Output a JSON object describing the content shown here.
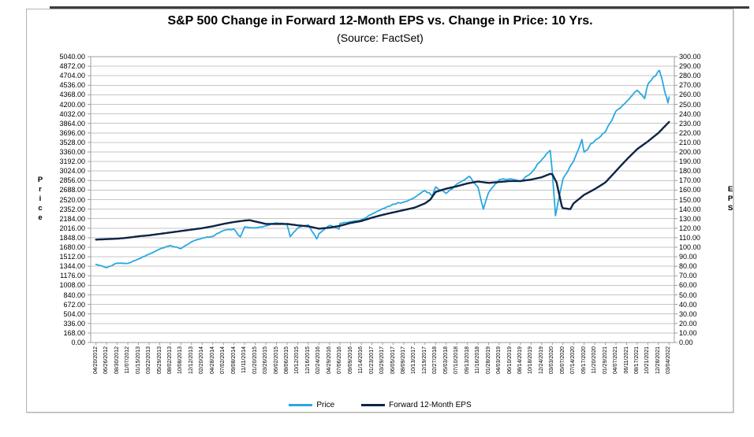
{
  "chart_data": {
    "type": "line",
    "title": "S&P 500 Change in Forward 12-Month EPS vs. Change in Price: 10 Yrs.",
    "subtitle": "(Source: FactSet)",
    "grid": true,
    "legend_position": "bottom",
    "x": [
      "04/20/2012",
      "06/26/2012",
      "08/30/2012",
      "11/07/2012",
      "01/15/2013",
      "03/22/2013",
      "05/29/2013",
      "08/02/2013",
      "10/08/2013",
      "12/12/2013",
      "02/20/2014",
      "04/28/2014",
      "07/02/2014",
      "09/08/2014",
      "11/11/2014",
      "01/20/2015",
      "03/26/2015",
      "06/02/2015",
      "08/06/2015",
      "10/12/2015",
      "12/16/2015",
      "02/24/2016",
      "04/29/2016",
      "07/06/2016",
      "09/09/2016",
      "11/14/2016",
      "01/23/2017",
      "03/29/2017",
      "06/05/2017",
      "08/09/2017",
      "10/13/2017",
      "12/19/2017",
      "02/27/2018",
      "05/03/2018",
      "07/10/2018",
      "09/13/2018",
      "11/16/2018",
      "01/28/2019",
      "04/03/2019",
      "06/10/2019",
      "08/14/2019",
      "10/18/2019",
      "12/24/2019",
      "03/03/2020",
      "05/07/2020",
      "07/14/2020",
      "09/17/2020",
      "11/20/2020",
      "01/29/2021",
      "04/07/2021",
      "06/11/2021",
      "08/17/2021",
      "10/21/2021",
      "12/28/2021",
      "03/04/2022"
    ],
    "left_axis": {
      "label": "Price",
      "lim": [
        0,
        5040
      ],
      "ticks": [
        "5040.00",
        "4872.00",
        "4704.00",
        "4536.00",
        "4368.00",
        "4200.00",
        "4032.00",
        "3864.00",
        "3696.00",
        "3528.00",
        "3360.00",
        "3192.00",
        "3024.00",
        "2856.00",
        "2688.00",
        "2520.00",
        "2352.00",
        "2184.00",
        "2016.00",
        "1848.00",
        "1680.00",
        "1512.00",
        "1344.00",
        "1176.00",
        "1008.00",
        "840.00",
        "672.00",
        "504.00",
        "336.00",
        "168.00",
        "0.00"
      ]
    },
    "right_axis": {
      "label": "EPS",
      "lim": [
        0,
        300
      ],
      "ticks": [
        "300.00",
        "290.00",
        "280.00",
        "270.00",
        "260.00",
        "250.00",
        "240.00",
        "230.00",
        "220.00",
        "210.00",
        "200.00",
        "190.00",
        "180.00",
        "170.00",
        "160.00",
        "150.00",
        "140.00",
        "130.00",
        "120.00",
        "110.00",
        "100.00",
        "90.00",
        "80.00",
        "70.00",
        "60.00",
        "50.00",
        "40.00",
        "30.00",
        "20.00",
        "10.00",
        "0.00"
      ]
    },
    "series": [
      {
        "name": "Price",
        "axis": "left",
        "color": "#29A8E0",
        "style": "noisy",
        "points": [
          [
            0,
            1378
          ],
          [
            1,
            1320
          ],
          [
            2,
            1399
          ],
          [
            3,
            1395
          ],
          [
            4,
            1472
          ],
          [
            5,
            1557
          ],
          [
            6,
            1648
          ],
          [
            7,
            1710
          ],
          [
            8,
            1655
          ],
          [
            9,
            1776
          ],
          [
            10,
            1840
          ],
          [
            11,
            1869
          ],
          [
            12,
            1975
          ],
          [
            13,
            2001
          ],
          [
            13.6,
            1862
          ],
          [
            14,
            2040
          ],
          [
            15,
            2022
          ],
          [
            16,
            2056
          ],
          [
            17,
            2109
          ],
          [
            18,
            2083
          ],
          [
            18.3,
            1868
          ],
          [
            19,
            2017
          ],
          [
            20,
            2073
          ],
          [
            20.8,
            1829
          ],
          [
            21,
            1921
          ],
          [
            22,
            2065
          ],
          [
            22.9,
            2001
          ],
          [
            23,
            2100
          ],
          [
            24,
            2128
          ],
          [
            25,
            2164
          ],
          [
            26,
            2265
          ],
          [
            27,
            2361
          ],
          [
            28,
            2436
          ],
          [
            29,
            2474
          ],
          [
            30,
            2553
          ],
          [
            31,
            2681
          ],
          [
            31.7,
            2581
          ],
          [
            32,
            2744
          ],
          [
            33,
            2630
          ],
          [
            34,
            2794
          ],
          [
            35,
            2904
          ],
          [
            35.2,
            2930
          ],
          [
            36,
            2736
          ],
          [
            36.5,
            2351
          ],
          [
            37,
            2644
          ],
          [
            38,
            2873
          ],
          [
            39,
            2886
          ],
          [
            40,
            2840
          ],
          [
            41,
            2986
          ],
          [
            42,
            3223
          ],
          [
            42.8,
            3386
          ],
          [
            43,
            3003
          ],
          [
            43.3,
            2237
          ],
          [
            44,
            2881
          ],
          [
            45,
            3198
          ],
          [
            45.8,
            3580
          ],
          [
            46,
            3357
          ],
          [
            47,
            3558
          ],
          [
            48,
            3714
          ],
          [
            49,
            4080
          ],
          [
            50,
            4247
          ],
          [
            51,
            4448
          ],
          [
            51.7,
            4300
          ],
          [
            52,
            4550
          ],
          [
            53,
            4786
          ],
          [
            53.1,
            4797
          ],
          [
            53.9,
            4226
          ],
          [
            54,
            4329
          ]
        ]
      },
      {
        "name": "Forward 12-Month EPS",
        "axis": "right",
        "color": "#0E2446",
        "style": "smooth",
        "points": [
          [
            0,
            108
          ],
          [
            1,
            108.5
          ],
          [
            2,
            109
          ],
          [
            3,
            110
          ],
          [
            4,
            111.5
          ],
          [
            5,
            112.5
          ],
          [
            6,
            114
          ],
          [
            7,
            115.5
          ],
          [
            8,
            117
          ],
          [
            9,
            118.5
          ],
          [
            10,
            120
          ],
          [
            11,
            122
          ],
          [
            12,
            124.5
          ],
          [
            13,
            126.5
          ],
          [
            14,
            128
          ],
          [
            14.5,
            128.4
          ],
          [
            15,
            127
          ],
          [
            16,
            124.5
          ],
          [
            17,
            124.5
          ],
          [
            18,
            124.5
          ],
          [
            19,
            123
          ],
          [
            20,
            122
          ],
          [
            21,
            119.5
          ],
          [
            22,
            120.5
          ],
          [
            23,
            122.5
          ],
          [
            24,
            125.5
          ],
          [
            25,
            127.5
          ],
          [
            26,
            131
          ],
          [
            27,
            134
          ],
          [
            28,
            136.5
          ],
          [
            29,
            139
          ],
          [
            30,
            141.5
          ],
          [
            31,
            146
          ],
          [
            31.5,
            150
          ],
          [
            32,
            158
          ],
          [
            33,
            161.5
          ],
          [
            34,
            164
          ],
          [
            35,
            167
          ],
          [
            36,
            169
          ],
          [
            37,
            167.5
          ],
          [
            38,
            168.5
          ],
          [
            39,
            169.5
          ],
          [
            40,
            169.5
          ],
          [
            41,
            171
          ],
          [
            42,
            173.5
          ],
          [
            42.8,
            177
          ],
          [
            43,
            176.5
          ],
          [
            43.4,
            168
          ],
          [
            43.9,
            143
          ],
          [
            44,
            141
          ],
          [
            44.7,
            140
          ],
          [
            45,
            146
          ],
          [
            46,
            155
          ],
          [
            47,
            161
          ],
          [
            48,
            168
          ],
          [
            49,
            180
          ],
          [
            50,
            192
          ],
          [
            51,
            203
          ],
          [
            52,
            211
          ],
          [
            53,
            220
          ],
          [
            54,
            231.5
          ]
        ]
      }
    ]
  },
  "colors": {
    "gridline": "#c6c6c6",
    "plot_border": "#9e9e9e",
    "top_rule": "#3d3d3d"
  }
}
